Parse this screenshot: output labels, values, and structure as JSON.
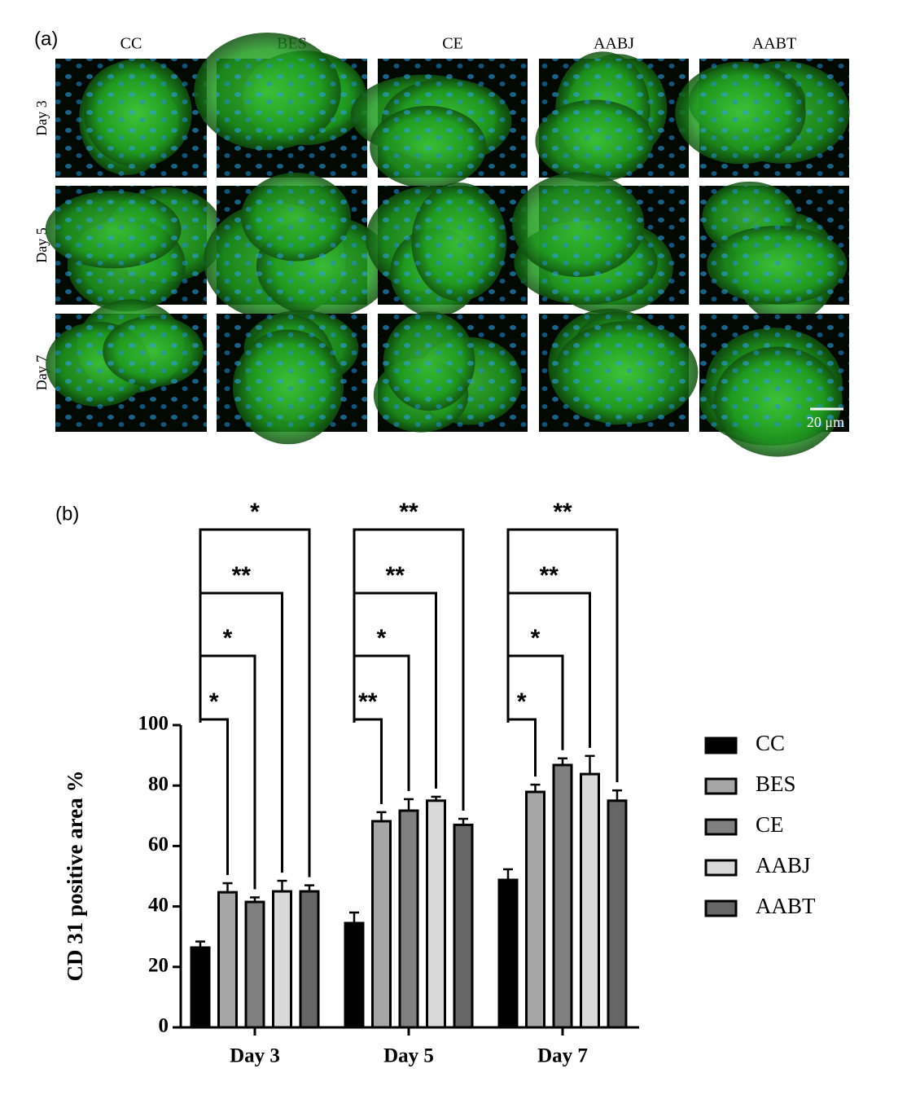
{
  "figure_a": {
    "label": "(a)",
    "columns": [
      "CC",
      "BES",
      "CE",
      "AABJ",
      "AABT"
    ],
    "rows": [
      "Day 3",
      "Day 5",
      "Day 7"
    ],
    "scale_bar": "20 μm"
  },
  "chart_data": {
    "type": "bar",
    "panel_label": "(b)",
    "y_label": "CD 31 positive area %",
    "categories": [
      "Day 3",
      "Day 5",
      "Day 7"
    ],
    "series": [
      {
        "name": "CC",
        "color": "#000000",
        "values": [
          26.4,
          34.5,
          48.8
        ],
        "errors": [
          2,
          3.5,
          3.5
        ]
      },
      {
        "name": "BES",
        "color": "#a6a6a6",
        "values": [
          44.7,
          68.2,
          77.9
        ],
        "errors": [
          3,
          3,
          2.4
        ],
        "significance": [
          "*",
          "**",
          "*"
        ]
      },
      {
        "name": "CE",
        "color": "#808080",
        "values": [
          41.5,
          71.7,
          86.8
        ],
        "errors": [
          1.5,
          3.8,
          2.2
        ],
        "significance": [
          "*",
          "*",
          "*"
        ]
      },
      {
        "name": "AABJ",
        "color": "#d9d9d9",
        "values": [
          45,
          75,
          83.8
        ],
        "errors": [
          3.5,
          1.3,
          6
        ],
        "significance": [
          "**",
          "**",
          "**"
        ]
      },
      {
        "name": "AABT",
        "color": "#666666",
        "values": [
          45,
          67,
          75
        ],
        "errors": [
          2,
          2,
          3.4
        ],
        "significance": [
          "*",
          "**",
          "**"
        ]
      }
    ],
    "ylim": [
      0,
      100
    ],
    "yticks": [
      0,
      20,
      40,
      60,
      80,
      100
    ],
    "grid": false,
    "legend": "right"
  }
}
